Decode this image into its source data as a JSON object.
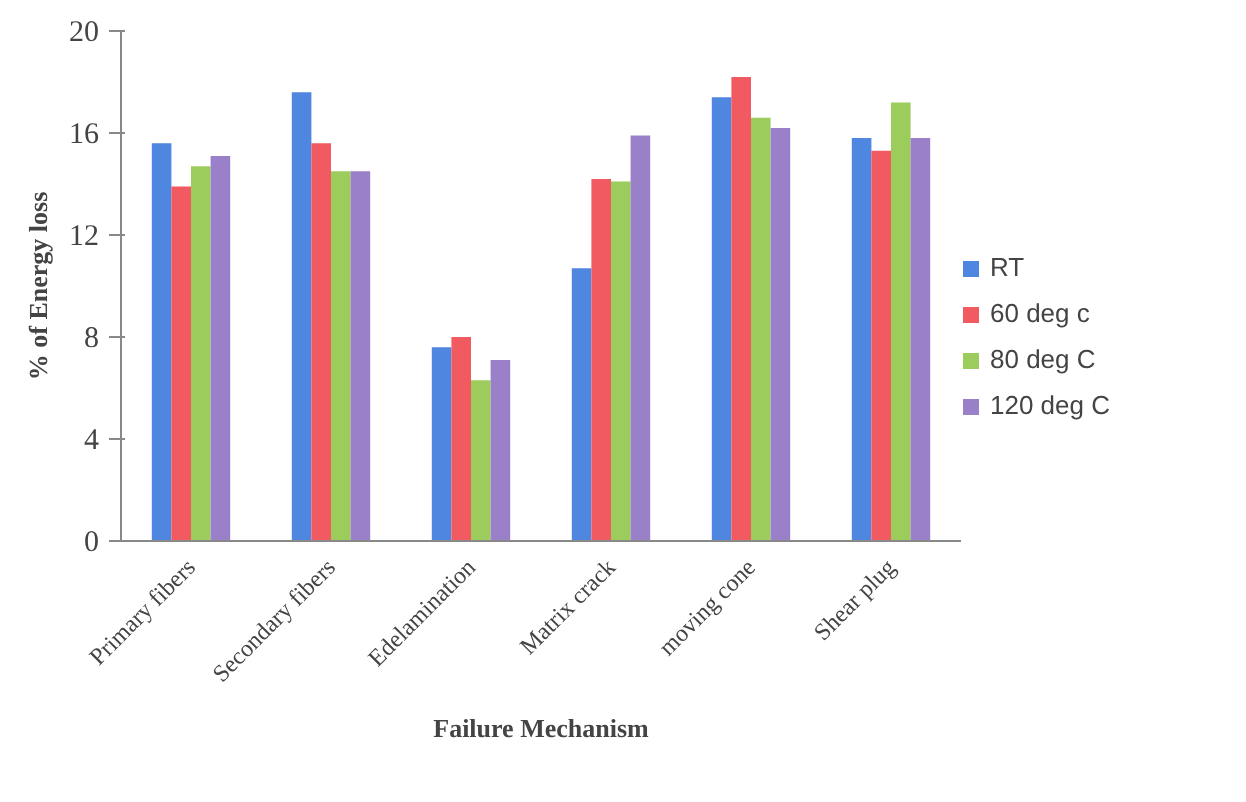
{
  "chart_data": {
    "type": "bar",
    "xlabel": "Failure Mechanism",
    "ylabel": "% of Energy loss",
    "categories": [
      "Primary fibers",
      "Secondary fibers",
      "Edelamination",
      "Matrix crack",
      "moving cone",
      "Shear plug"
    ],
    "series": [
      {
        "name": "RT",
        "color": "#4f86e0",
        "values": [
          15.6,
          17.6,
          7.6,
          10.7,
          17.4,
          15.8
        ]
      },
      {
        "name": "60 deg c",
        "color": "#f05a60",
        "values": [
          13.9,
          15.6,
          8.0,
          14.2,
          18.2,
          15.3
        ]
      },
      {
        "name": "80 deg C",
        "color": "#9ccc5c",
        "values": [
          14.7,
          14.5,
          6.3,
          14.1,
          16.6,
          17.2
        ]
      },
      {
        "name": "120 deg C",
        "color": "#9a80c8",
        "values": [
          15.1,
          14.5,
          7.1,
          15.9,
          16.2,
          15.8
        ]
      }
    ],
    "ylim": [
      0,
      20
    ],
    "yticks": [
      0,
      4,
      8,
      12,
      16,
      20
    ],
    "grid": false,
    "legend": "right"
  }
}
